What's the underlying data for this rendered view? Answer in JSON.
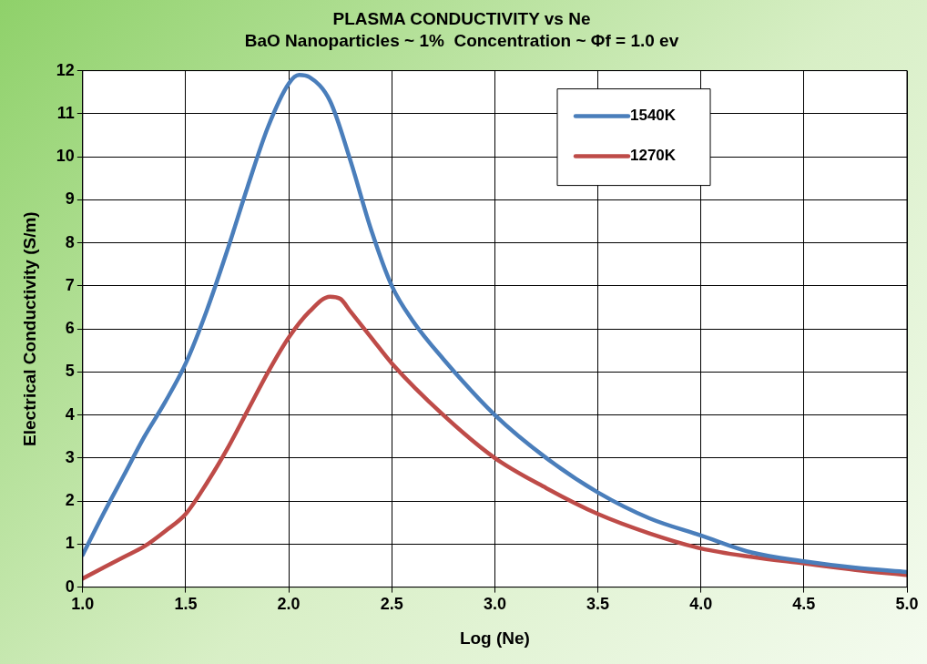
{
  "chart_data": {
    "type": "line",
    "title": "PLASMA CONDUCTIVITY vs Ne",
    "subtitle": "BaO Nanoparticles ~ 1%  Concentration ~ Φf = 1.0 ev",
    "xlabel": "Log (Ne)",
    "ylabel": "Electrical Conductivity (S/m)",
    "xlim": [
      1.0,
      5.0
    ],
    "xticks": [
      {
        "value": 1,
        "label": "1.0"
      },
      {
        "value": 1.5,
        "label": "1.5"
      },
      {
        "value": 2,
        "label": "2.0"
      },
      {
        "value": 2.5,
        "label": "2.5"
      },
      {
        "value": 3,
        "label": "3.0"
      },
      {
        "value": 3.5,
        "label": "3.5"
      },
      {
        "value": 4,
        "label": "4.0"
      },
      {
        "value": 4.5,
        "label": "4.5"
      },
      {
        "value": 5,
        "label": "5.0"
      }
    ],
    "ylim": [
      0,
      12
    ],
    "yticks": [
      0,
      1,
      2,
      3,
      4,
      5,
      6,
      7,
      8,
      9,
      10,
      11,
      12
    ],
    "grid": true,
    "legend": "top right",
    "marker": "none",
    "line_style": "solid",
    "series": [
      {
        "name": "1540K",
        "color": "#4a7ebb",
        "x": [
          1.0,
          1.1,
          1.2,
          1.3,
          1.4,
          1.5,
          1.6,
          1.7,
          1.8,
          1.9,
          2.0,
          2.05,
          2.1,
          2.2,
          2.3,
          2.4,
          2.5,
          2.6,
          2.75,
          3.0,
          3.25,
          3.5,
          3.75,
          4.0,
          4.25,
          4.5,
          4.75,
          5.0
        ],
        "values": [
          0.75,
          1.7,
          2.6,
          3.5,
          4.3,
          5.2,
          6.4,
          7.8,
          9.3,
          10.7,
          11.7,
          11.9,
          11.85,
          11.3,
          9.9,
          8.3,
          7.0,
          6.2,
          5.3,
          4.0,
          3.0,
          2.2,
          1.6,
          1.2,
          0.8,
          0.6,
          0.45,
          0.35
        ]
      },
      {
        "name": "1270K",
        "color": "#be4b48",
        "x": [
          1.0,
          1.1,
          1.2,
          1.3,
          1.4,
          1.5,
          1.6,
          1.7,
          1.8,
          1.9,
          2.0,
          2.1,
          2.2,
          2.25,
          2.3,
          2.4,
          2.5,
          2.75,
          3.0,
          3.25,
          3.5,
          3.75,
          4.0,
          4.25,
          4.5,
          4.75,
          5.0
        ],
        "values": [
          0.2,
          0.45,
          0.7,
          0.95,
          1.3,
          1.7,
          2.4,
          3.2,
          4.1,
          5.0,
          5.8,
          6.4,
          6.75,
          6.7,
          6.4,
          5.8,
          5.2,
          4.0,
          3.0,
          2.3,
          1.7,
          1.25,
          0.9,
          0.7,
          0.55,
          0.4,
          0.28
        ]
      }
    ]
  }
}
